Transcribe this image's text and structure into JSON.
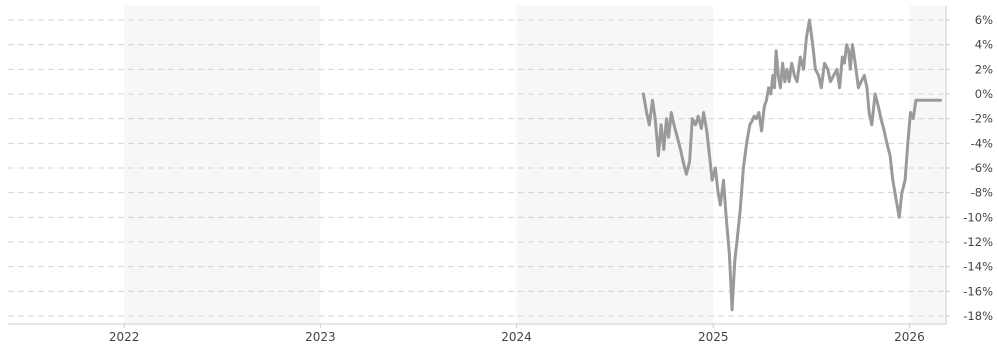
{
  "chart_data": {
    "type": "line",
    "title": "",
    "xlabel": "",
    "ylabel": "",
    "ylim": [
      -18,
      6
    ],
    "xlim": [
      "2021-05-15",
      "2026-03-10"
    ],
    "grid": true,
    "legend": "none",
    "y_ticks": [
      "6%",
      "4%",
      "2%",
      "0%",
      "-2%",
      "-4%",
      "-6%",
      "-8%",
      "-10%",
      "-12%",
      "-14%",
      "-16%",
      "-18%"
    ],
    "x_ticks": [
      {
        "label": "2022",
        "date": "2022-01-01"
      },
      {
        "label": "2023",
        "date": "2023-01-01"
      },
      {
        "label": "2024",
        "date": "2024-01-01"
      },
      {
        "label": "2025",
        "date": "2025-01-01"
      },
      {
        "label": "2026",
        "date": "2026-01-01"
      }
    ],
    "colors": {
      "line": "#9a9a9a",
      "grid": "#d4d4d4",
      "band": "#f7f7f7",
      "axis": "#cccccc"
    },
    "series": [
      {
        "x": [
          "2024-08-24",
          "2024-08-30",
          "2024-09-04",
          "2024-09-10",
          "2024-09-15",
          "2024-09-21",
          "2024-09-26",
          "2024-10-01",
          "2024-10-06",
          "2024-10-10",
          "2024-10-15",
          "2024-10-20",
          "2024-10-26",
          "2024-11-01",
          "2024-11-06",
          "2024-11-12",
          "2024-11-18",
          "2024-11-23",
          "2024-11-29",
          "2024-12-04",
          "2024-12-10",
          "2024-12-14",
          "2024-12-20",
          "2024-12-25",
          "2024-12-30",
          "2025-01-05",
          "2025-01-10",
          "2025-01-14",
          "2025-01-20",
          "2025-01-25",
          "2025-01-31",
          "2025-02-05",
          "2025-02-10",
          "2025-02-14",
          "2025-02-20",
          "2025-02-26",
          "2025-03-04",
          "2025-03-10",
          "2025-03-14",
          "2025-03-18",
          "2025-03-22",
          "2025-03-27",
          "2025-04-01",
          "2025-04-06",
          "2025-04-10",
          "2025-04-14",
          "2025-04-18",
          "2025-04-22",
          "2025-04-25",
          "2025-04-28",
          "2025-05-02",
          "2025-05-06",
          "2025-05-10",
          "2025-05-14",
          "2025-05-18",
          "2025-05-22",
          "2025-05-27",
          "2025-06-01",
          "2025-06-06",
          "2025-06-12",
          "2025-06-18",
          "2025-06-23",
          "2025-06-29",
          "2025-07-05",
          "2025-07-10",
          "2025-07-16",
          "2025-07-21",
          "2025-07-27",
          "2025-08-02",
          "2025-08-07",
          "2025-08-13",
          "2025-08-19",
          "2025-08-24",
          "2025-08-29",
          "2025-09-02",
          "2025-09-06",
          "2025-09-10",
          "2025-09-13",
          "2025-09-17",
          "2025-09-22",
          "2025-09-28",
          "2025-10-03",
          "2025-10-09",
          "2025-10-14",
          "2025-10-18",
          "2025-10-23",
          "2025-10-29",
          "2025-11-04",
          "2025-11-09",
          "2025-11-15",
          "2025-11-20",
          "2025-11-26",
          "2025-12-01",
          "2025-12-07",
          "2025-12-13",
          "2025-12-18",
          "2025-12-24",
          "2025-12-29",
          "2026-01-03",
          "2026-01-08",
          "2026-01-13",
          "2026-01-18",
          "2026-01-22",
          "2026-01-27",
          "2026-01-31",
          "2026-02-04",
          "2026-02-08",
          "2026-02-12",
          "2026-02-16",
          "2026-02-20",
          "2026-02-24",
          "2026-02-28"
        ],
        "values": [
          0.0,
          -1.5,
          -2.5,
          -0.5,
          -2.0,
          -5.0,
          -2.5,
          -4.5,
          -2.0,
          -3.5,
          -1.5,
          -2.5,
          -3.5,
          -4.5,
          -5.5,
          -6.5,
          -5.5,
          -2.0,
          -2.5,
          -1.8,
          -2.8,
          -1.5,
          -3.0,
          -5.0,
          -7.0,
          -6.0,
          -8.0,
          -9.0,
          -7.0,
          -10.0,
          -13.0,
          -17.5,
          -13.5,
          -12.0,
          -9.5,
          -6.0,
          -4.0,
          -2.5,
          -2.2,
          -1.8,
          -2.0,
          -1.5,
          -3.0,
          -1.0,
          -0.5,
          0.5,
          0.0,
          1.5,
          0.5,
          3.5,
          1.5,
          0.5,
          2.5,
          1.0,
          2.0,
          1.0,
          2.5,
          1.5,
          1.0,
          3.0,
          2.0,
          4.5,
          6.0,
          4.0,
          2.0,
          1.5,
          0.5,
          2.5,
          2.0,
          1.0,
          1.5,
          2.0,
          0.5,
          3.0,
          2.5,
          4.0,
          3.5,
          2.0,
          4.0,
          2.5,
          0.5,
          1.0,
          1.5,
          0.5,
          -1.5,
          -2.5,
          0.0,
          -1.0,
          -2.0,
          -3.0,
          -4.0,
          -5.0,
          -7.0,
          -8.5,
          -10.0,
          -8.0,
          -7.0,
          -4.0,
          -1.5,
          -2.0,
          -0.5,
          -0.5,
          -0.5,
          -0.5,
          -0.5,
          -0.5,
          -0.5,
          -0.5,
          -0.5,
          -0.5,
          -0.5,
          -0.5
        ]
      }
    ]
  }
}
